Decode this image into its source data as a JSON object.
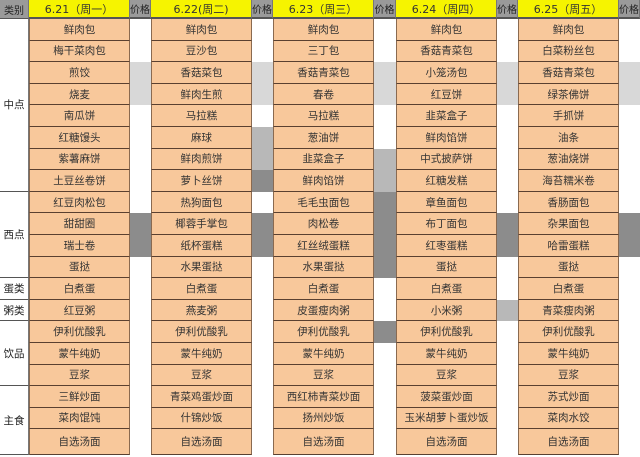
{
  "header": {
    "category_label": "类别",
    "price_label": "价格",
    "days": [
      "6.21（周一）",
      "6.22(周二)",
      "6.23（周三）",
      "6.24（周四）",
      "6.25（周五）"
    ]
  },
  "categories": [
    {
      "name": "中点",
      "rows": 8
    },
    {
      "name": "西点",
      "rows": 4
    },
    {
      "name": "蛋类",
      "rows": 1
    },
    {
      "name": "粥类",
      "rows": 1
    },
    {
      "name": "饮品",
      "rows": 3
    },
    {
      "name": "主食",
      "rows": 3
    }
  ],
  "menu": [
    [
      "鲜肉包",
      "梅干菜肉包",
      "煎饺",
      "烧麦",
      "南瓜饼",
      "红糖馒头",
      "紫薯麻饼",
      "土豆丝卷饼",
      "红豆肉松包",
      "甜甜圈",
      "瑞士卷",
      "蛋挞",
      "白煮蛋",
      "红豆粥",
      "伊利优酸乳",
      "蒙牛纯奶",
      "豆浆",
      "三鲜炒面",
      "菜肉馄饨",
      "自选汤面"
    ],
    [
      "鲜肉包",
      "豆沙包",
      "香菇菜包",
      "鲜肉生煎",
      "马拉糕",
      "麻球",
      "鲜肉煎饼",
      "萝卜丝饼",
      "热狗面包",
      "椰蓉手掌包",
      "纸杯蛋糕",
      "水果蛋挞",
      "白煮蛋",
      "燕麦粥",
      "伊利优酸乳",
      "蒙牛纯奶",
      "豆浆",
      "青菜鸡蛋炒面",
      "什锦炒饭",
      "自选汤面"
    ],
    [
      "鲜肉包",
      "三丁包",
      "香菇青菜包",
      "春卷",
      "马拉糕",
      "葱油饼",
      "韭菜盒子",
      "鲜肉馅饼",
      "毛毛虫面包",
      "肉松卷",
      "红丝绒蛋糕",
      "水果蛋挞",
      "白煮蛋",
      "皮蛋瘦肉粥",
      "伊利优酸乳",
      "蒙牛纯奶",
      "豆浆",
      "西红柿青菜炒面",
      "扬州炒饭",
      "自选汤面"
    ],
    [
      "鲜肉包",
      "香菇青菜包",
      "小笼汤包",
      "红豆饼",
      "韭菜盒子",
      "鲜肉馅饼",
      "中式披萨饼",
      "红糖发糕",
      "章鱼面包",
      "布丁面包",
      "红枣蛋糕",
      "蛋挞",
      "白煮蛋",
      "小米粥",
      "伊利优酸乳",
      "蒙牛纯奶",
      "豆浆",
      "菠菜蛋炒面",
      "玉米胡萝卜蛋炒饭",
      "自选汤面"
    ],
    [
      "鲜肉包",
      "白菜粉丝包",
      "香菇青菜包",
      "绿茶佛饼",
      "手抓饼",
      "油条",
      "葱油烧饼",
      "海苔糯米卷",
      "香肠面包",
      "杂果面包",
      "哈雷蛋糕",
      "蛋挞",
      "白煮蛋",
      "青菜瘦肉粥",
      "伊利优酸乳",
      "蒙牛纯奶",
      "豆浆",
      "苏式炒面",
      "菜肉水饺",
      "自选汤面"
    ]
  ],
  "colors": {
    "header": "#f6f400",
    "cell": "#f8c89b",
    "price_header": "#9a9a9a"
  }
}
